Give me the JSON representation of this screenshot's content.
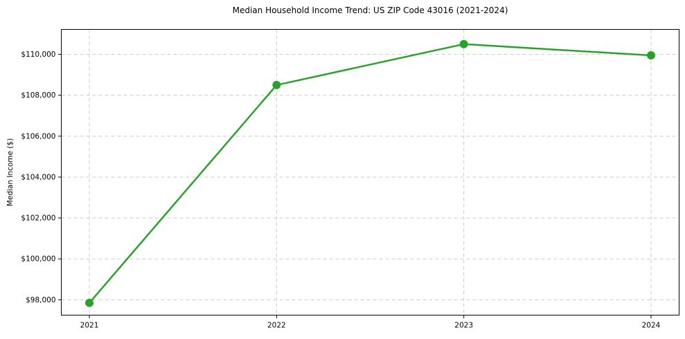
{
  "chart_data": {
    "type": "line",
    "title": "Median Household Income Trend: US ZIP Code 43016 (2021-2024)",
    "xlabel": "",
    "ylabel": "Median Income ($)",
    "x": [
      2021,
      2022,
      2023,
      2024
    ],
    "x_tick_labels": [
      "2021",
      "2022",
      "2023",
      "2024"
    ],
    "series": [
      {
        "name": "Median Household Income",
        "values": [
          97850,
          108500,
          110500,
          109950
        ],
        "color": "#2ca02c",
        "marker": "circle"
      }
    ],
    "y_ticks": [
      98000,
      100000,
      102000,
      104000,
      106000,
      108000,
      110000
    ],
    "y_tick_labels": [
      "$98,000",
      "$100,000",
      "$102,000",
      "$104,000",
      "$106,000",
      "$108,000",
      "$110,000"
    ],
    "xlim": [
      2020.85,
      2024.15
    ],
    "ylim": [
      97250,
      111220
    ],
    "grid": true,
    "grid_style": "dashed",
    "legend": "none",
    "colors": {
      "line": "#2ca02c",
      "grid": "#c9c9c9",
      "frame": "#000000",
      "text": "#000000",
      "background": "#ffffff"
    }
  }
}
